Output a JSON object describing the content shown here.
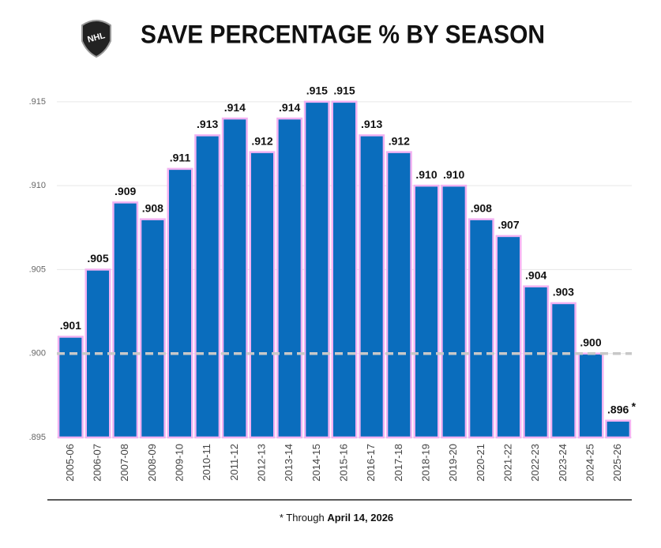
{
  "chart_data": {
    "type": "bar",
    "title": "SAVE PERCENTAGE % BY SEASON",
    "logo_text": "NHL",
    "categories": [
      "2005-06",
      "2006-07",
      "2007-08",
      "2008-09",
      "2009-10",
      "2010-11",
      "2011-12",
      "2012-13",
      "2013-14",
      "2014-15",
      "2015-16",
      "2016-17",
      "2017-18",
      "2018-19",
      "2019-20",
      "2020-21",
      "2021-22",
      "2022-23",
      "2023-24",
      "2024-25",
      "2025-26"
    ],
    "values": [
      0.901,
      0.905,
      0.909,
      0.908,
      0.911,
      0.913,
      0.914,
      0.912,
      0.914,
      0.915,
      0.915,
      0.913,
      0.912,
      0.91,
      0.91,
      0.908,
      0.907,
      0.904,
      0.903,
      0.9,
      0.896
    ],
    "value_labels": [
      ".901",
      ".905",
      ".909",
      ".908",
      ".911",
      ".913",
      ".914",
      ".912",
      ".914",
      ".915",
      ".915",
      ".913",
      ".912",
      ".910",
      ".910",
      ".908",
      ".907",
      ".904",
      ".903",
      ".900",
      ".896"
    ],
    "last_label_marker": "*",
    "color": "#0a6dbd",
    "outline_color": "#f2b2f2",
    "ylim": [
      0.895,
      0.916
    ],
    "yticks": [
      {
        "value": 0.895,
        "label": ".895"
      },
      {
        "value": 0.9,
        "label": ".900"
      },
      {
        "value": 0.905,
        "label": ".905"
      },
      {
        "value": 0.91,
        "label": ".910"
      },
      {
        "value": 0.915,
        "label": ".915"
      }
    ],
    "grid": true,
    "reference_line": 0.9,
    "footnote_prefix": "* Through",
    "footnote_date": "April 14, 2026"
  }
}
